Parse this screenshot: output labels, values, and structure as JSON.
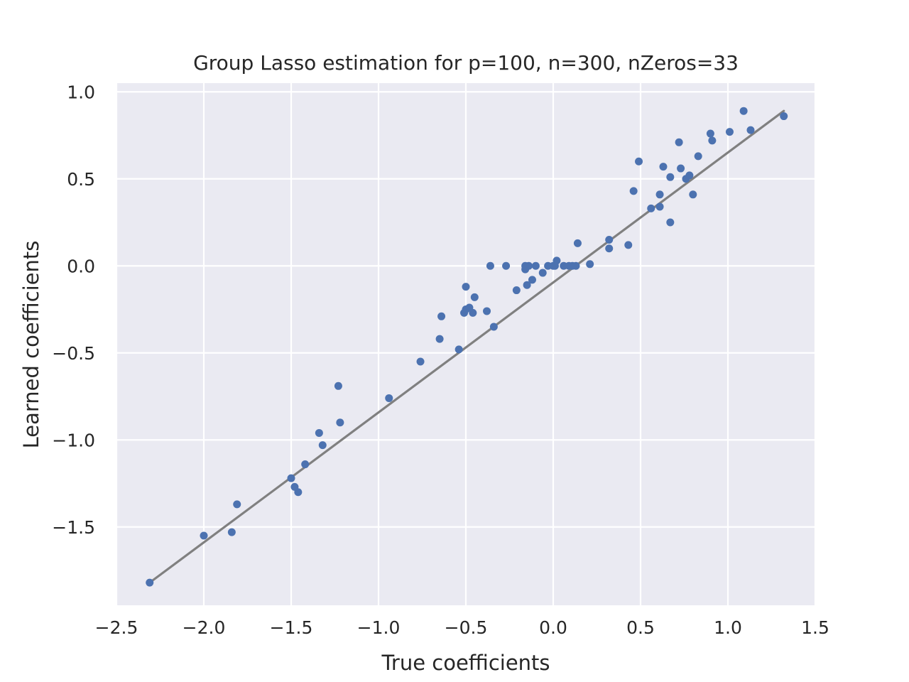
{
  "chart_data": {
    "type": "scatter",
    "title": "Group Lasso estimation for p=100, n=300, nZeros=33",
    "xlabel": "True coefficients",
    "ylabel": "Learned coefficients",
    "xlim": [
      -2.5,
      1.5
    ],
    "ylim": [
      -1.95,
      1.05
    ],
    "x_ticks": [
      -2.5,
      -2.0,
      -1.5,
      -1.0,
      -0.5,
      0.0,
      0.5,
      1.0,
      1.5
    ],
    "x_tick_labels": [
      "−2.5",
      "−2.0",
      "−1.5",
      "−1.0",
      "−0.5",
      "0.0",
      "0.5",
      "1.0",
      "1.5"
    ],
    "y_ticks": [
      -1.5,
      -1.0,
      -0.5,
      0.0,
      0.5,
      1.0
    ],
    "y_tick_labels": [
      "−1.5",
      "−1.0",
      "−0.5",
      "0.0",
      "0.5",
      "1.0"
    ],
    "grid": true,
    "colors": {
      "background": "#eaeaf2",
      "grid": "#ffffff",
      "points": "#4c72b0",
      "line": "#808080",
      "text": "#262626"
    },
    "reference_line": {
      "x": [
        -2.31,
        1.32
      ],
      "y": [
        -1.82,
        0.89
      ]
    },
    "series": [
      {
        "points": [
          [
            -2.31,
            -1.82
          ],
          [
            -2.0,
            -1.55
          ],
          [
            -1.84,
            -1.53
          ],
          [
            -1.81,
            -1.37
          ],
          [
            -1.5,
            -1.22
          ],
          [
            -1.48,
            -1.27
          ],
          [
            -1.46,
            -1.3
          ],
          [
            -1.42,
            -1.14
          ],
          [
            -1.34,
            -0.96
          ],
          [
            -1.32,
            -1.03
          ],
          [
            -1.23,
            -0.69
          ],
          [
            -1.22,
            -0.9
          ],
          [
            -0.94,
            -0.76
          ],
          [
            -0.76,
            -0.55
          ],
          [
            -0.65,
            -0.42
          ],
          [
            -0.64,
            -0.29
          ],
          [
            -0.54,
            -0.48
          ],
          [
            -0.51,
            -0.27
          ],
          [
            -0.5,
            -0.12
          ],
          [
            -0.5,
            -0.25
          ],
          [
            -0.48,
            -0.24
          ],
          [
            -0.46,
            -0.27
          ],
          [
            -0.45,
            -0.18
          ],
          [
            -0.38,
            -0.26
          ],
          [
            -0.36,
            0.0
          ],
          [
            -0.34,
            -0.35
          ],
          [
            -0.27,
            0.0
          ],
          [
            -0.21,
            -0.14
          ],
          [
            -0.16,
            0.0
          ],
          [
            -0.16,
            -0.02
          ],
          [
            -0.15,
            -0.11
          ],
          [
            -0.14,
            0.0
          ],
          [
            -0.12,
            -0.08
          ],
          [
            -0.1,
            0.0
          ],
          [
            -0.06,
            -0.04
          ],
          [
            -0.03,
            0.0
          ],
          [
            0.0,
            0.0
          ],
          [
            0.01,
            0.0
          ],
          [
            0.02,
            0.03
          ],
          [
            0.06,
            0.0
          ],
          [
            0.09,
            0.0
          ],
          [
            0.11,
            0.0
          ],
          [
            0.13,
            0.0
          ],
          [
            0.14,
            0.13
          ],
          [
            0.21,
            0.01
          ],
          [
            0.32,
            0.15
          ],
          [
            0.32,
            0.1
          ],
          [
            0.43,
            0.12
          ],
          [
            0.46,
            0.43
          ],
          [
            0.49,
            0.6
          ],
          [
            0.56,
            0.33
          ],
          [
            0.61,
            0.41
          ],
          [
            0.61,
            0.34
          ],
          [
            0.63,
            0.57
          ],
          [
            0.67,
            0.25
          ],
          [
            0.67,
            0.51
          ],
          [
            0.72,
            0.71
          ],
          [
            0.73,
            0.56
          ],
          [
            0.76,
            0.5
          ],
          [
            0.78,
            0.52
          ],
          [
            0.8,
            0.41
          ],
          [
            0.83,
            0.63
          ],
          [
            0.9,
            0.76
          ],
          [
            0.91,
            0.72
          ],
          [
            1.01,
            0.77
          ],
          [
            1.09,
            0.89
          ],
          [
            1.13,
            0.78
          ],
          [
            1.32,
            0.86
          ]
        ]
      }
    ]
  }
}
